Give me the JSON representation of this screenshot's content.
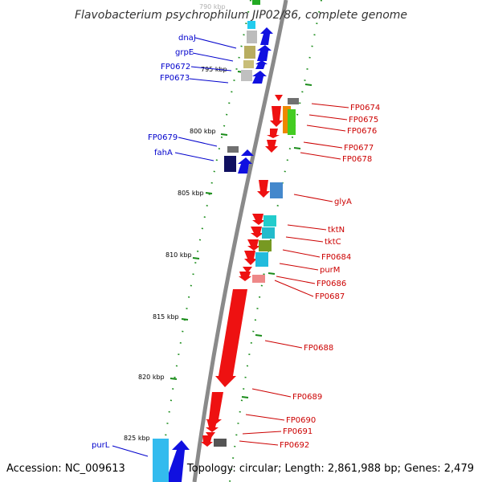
{
  "title": "Flavobacterium psychrophilum JIP02/86, complete genome",
  "accession": "Accession: NC_009613",
  "topology": "Topology: circular; Length: 2,861,988 bp; Genes: 2,479",
  "colors": {
    "left_labels": "#0000cc",
    "right_labels": "#cc0000",
    "ticks": "#1a8c1a",
    "backbone": "#888888"
  },
  "kbp_ticks": [
    "790 kbp",
    "795 kbp",
    "800 kbp",
    "805 kbp",
    "810 kbp",
    "815 kbp",
    "820 kbp",
    "825 kbp"
  ],
  "left_genes": [
    "dnaJ",
    "grpE",
    "FP0672",
    "FP0673",
    "FP0679",
    "fahA",
    "purL"
  ],
  "right_genes": [
    "FP0674",
    "FP0675",
    "FP0676",
    "FP0677",
    "FP0678",
    "glyA",
    "tktN",
    "tktC",
    "FP0684",
    "purM",
    "FP0686",
    "FP0687",
    "FP0688",
    "FP0689",
    "FP0690",
    "FP0691",
    "FP0692"
  ]
}
